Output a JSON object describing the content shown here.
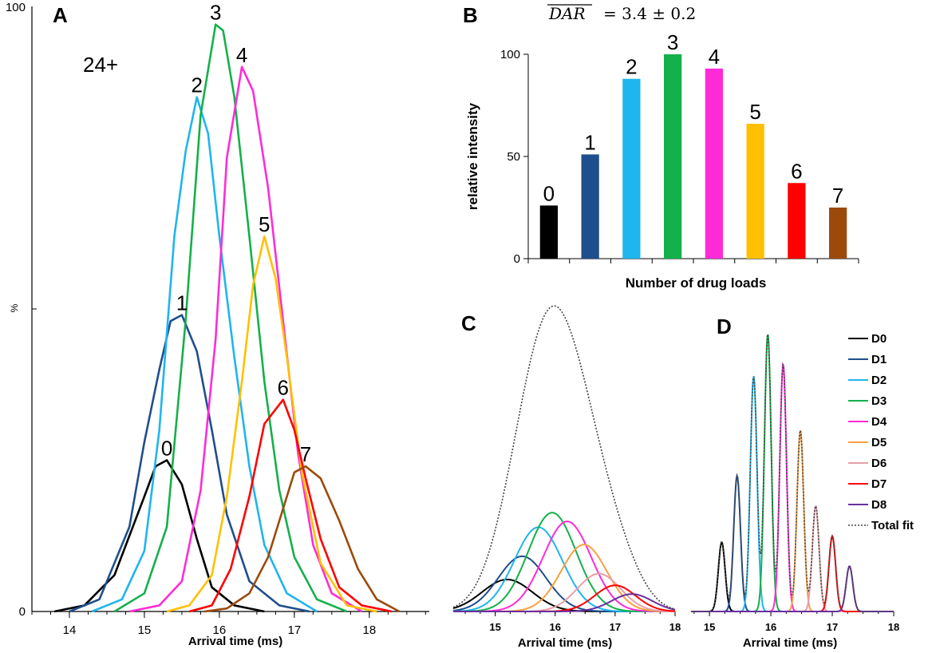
{
  "colors": {
    "D0": "#000000",
    "D1": "#1f4e8c",
    "D2": "#1fb5ee",
    "D3": "#14b04a",
    "D4": "#ff2bd6",
    "D5": "#ffc000",
    "D6": "#ff0000",
    "D7": "#9c4a0c",
    "C_D5": "#f7a040",
    "C_D6": "#e6a0a8",
    "C_D8": "#6a2fa0"
  },
  "chart_data": [
    {
      "panel": "A",
      "type": "line",
      "annotation": "24+",
      "xlabel": "Arrival time (ms)",
      "ylabel": "%",
      "xlim": [
        13.5,
        18.8
      ],
      "ylim": [
        0,
        100
      ],
      "xticks": [
        "14",
        "15",
        "16",
        "17",
        "18"
      ],
      "yticks": [
        "0",
        "100"
      ],
      "series": [
        {
          "name": "0",
          "color": "#000000",
          "points": [
            [
              13.8,
              0
            ],
            [
              14.2,
              1
            ],
            [
              14.6,
              6
            ],
            [
              15.0,
              19
            ],
            [
              15.15,
              24
            ],
            [
              15.3,
              25
            ],
            [
              15.5,
              21
            ],
            [
              15.7,
              12
            ],
            [
              15.9,
              4
            ],
            [
              16.2,
              1
            ],
            [
              16.6,
              0
            ]
          ]
        },
        {
          "name": "1",
          "color": "#1f4e8c",
          "points": [
            [
              14.0,
              0
            ],
            [
              14.4,
              2
            ],
            [
              14.8,
              14
            ],
            [
              15.0,
              28
            ],
            [
              15.2,
              40
            ],
            [
              15.35,
              48
            ],
            [
              15.5,
              49
            ],
            [
              15.7,
              43
            ],
            [
              15.9,
              30
            ],
            [
              16.1,
              16
            ],
            [
              16.4,
              5
            ],
            [
              16.8,
              1
            ],
            [
              17.2,
              0
            ]
          ]
        },
        {
          "name": "2",
          "color": "#1fb5ee",
          "points": [
            [
              14.3,
              0
            ],
            [
              14.7,
              2
            ],
            [
              15.0,
              10
            ],
            [
              15.2,
              30
            ],
            [
              15.4,
              62
            ],
            [
              15.55,
              76
            ],
            [
              15.7,
              85
            ],
            [
              15.85,
              79
            ],
            [
              16.0,
              62
            ],
            [
              16.2,
              42
            ],
            [
              16.4,
              24
            ],
            [
              16.6,
              11
            ],
            [
              16.9,
              3
            ],
            [
              17.3,
              0
            ]
          ]
        },
        {
          "name": "3",
          "color": "#14b04a",
          "points": [
            [
              14.6,
              0
            ],
            [
              15.0,
              3
            ],
            [
              15.3,
              14
            ],
            [
              15.55,
              48
            ],
            [
              15.75,
              82
            ],
            [
              15.95,
              97
            ],
            [
              16.05,
              96
            ],
            [
              16.2,
              85
            ],
            [
              16.4,
              62
            ],
            [
              16.6,
              38
            ],
            [
              16.8,
              20
            ],
            [
              17.0,
              9
            ],
            [
              17.3,
              2
            ],
            [
              17.7,
              0
            ]
          ]
        },
        {
          "name": "4",
          "color": "#ff2bd6",
          "points": [
            [
              14.8,
              0
            ],
            [
              15.2,
              1
            ],
            [
              15.5,
              5
            ],
            [
              15.75,
              20
            ],
            [
              15.95,
              45
            ],
            [
              16.1,
              75
            ],
            [
              16.3,
              90
            ],
            [
              16.45,
              86
            ],
            [
              16.65,
              70
            ],
            [
              16.85,
              48
            ],
            [
              17.05,
              26
            ],
            [
              17.25,
              11
            ],
            [
              17.5,
              3
            ],
            [
              17.9,
              0
            ]
          ]
        },
        {
          "name": "5",
          "color": "#ffc000",
          "points": [
            [
              15.3,
              0
            ],
            [
              15.6,
              1
            ],
            [
              15.9,
              6
            ],
            [
              16.1,
              19
            ],
            [
              16.3,
              38
            ],
            [
              16.45,
              54
            ],
            [
              16.6,
              62
            ],
            [
              16.75,
              55
            ],
            [
              16.9,
              42
            ],
            [
              17.1,
              23
            ],
            [
              17.35,
              8
            ],
            [
              17.7,
              1
            ],
            [
              18.1,
              0
            ]
          ]
        },
        {
          "name": "6",
          "color": "#ff0000",
          "points": [
            [
              15.6,
              0
            ],
            [
              15.9,
              1
            ],
            [
              16.15,
              7
            ],
            [
              16.4,
              19
            ],
            [
              16.6,
              31
            ],
            [
              16.85,
              35
            ],
            [
              17.0,
              30
            ],
            [
              17.15,
              22
            ],
            [
              17.35,
              12
            ],
            [
              17.6,
              4
            ],
            [
              17.9,
              1
            ],
            [
              18.3,
              0
            ]
          ]
        },
        {
          "name": "7",
          "color": "#9c4a0c",
          "points": [
            [
              15.8,
              0
            ],
            [
              16.1,
              0.5
            ],
            [
              16.4,
              3
            ],
            [
              16.65,
              9
            ],
            [
              16.85,
              17
            ],
            [
              17.0,
              23
            ],
            [
              17.15,
              24
            ],
            [
              17.35,
              22
            ],
            [
              17.6,
              15
            ],
            [
              17.85,
              7
            ],
            [
              18.1,
              2
            ],
            [
              18.4,
              0
            ]
          ]
        }
      ]
    },
    {
      "panel": "B",
      "type": "bar",
      "title_parts": {
        "lhs": "DAR",
        "rhs": "= 3.4 ± 0.2"
      },
      "xlabel": "Number of drug loads",
      "ylabel": "relative intensity",
      "ylim": [
        0,
        100
      ],
      "yticks": [
        "0",
        "50",
        "100"
      ],
      "categories": [
        "0",
        "1",
        "2",
        "3",
        "4",
        "5",
        "6",
        "7"
      ],
      "values": [
        26,
        51,
        88,
        100,
        93,
        66,
        37,
        25
      ],
      "bar_colors": [
        "#000000",
        "#1f4e8c",
        "#1fb5ee",
        "#14b04a",
        "#ff2bd6",
        "#ffc000",
        "#ff0000",
        "#9c4a0c"
      ]
    },
    {
      "panel": "C",
      "type": "line",
      "xlabel": "Arrival time (ms)",
      "xlim": [
        14.3,
        18.0
      ],
      "ylim": [
        0,
        100
      ],
      "xticks": [
        "15",
        "16",
        "17",
        "18"
      ],
      "gaussians": [
        {
          "name": "D0",
          "center": 15.2,
          "height": 11,
          "sigma": 0.42,
          "color": "#000000"
        },
        {
          "name": "D1",
          "center": 15.45,
          "height": 19,
          "sigma": 0.4,
          "color": "#1f4e8c"
        },
        {
          "name": "D2",
          "center": 15.72,
          "height": 29,
          "sigma": 0.4,
          "color": "#1fb5ee"
        },
        {
          "name": "D3",
          "center": 15.95,
          "height": 34,
          "sigma": 0.4,
          "color": "#14b04a"
        },
        {
          "name": "D4",
          "center": 16.2,
          "height": 31,
          "sigma": 0.4,
          "color": "#ff2bd6"
        },
        {
          "name": "D5",
          "center": 16.48,
          "height": 23,
          "sigma": 0.38,
          "color": "#f7a040"
        },
        {
          "name": "D6",
          "center": 16.73,
          "height": 13,
          "sigma": 0.36,
          "color": "#e6a0a8"
        },
        {
          "name": "D7",
          "center": 17.0,
          "height": 9,
          "sigma": 0.34,
          "color": "#ff0000"
        },
        {
          "name": "D8",
          "center": 17.28,
          "height": 6,
          "sigma": 0.34,
          "color": "#6a2fa0"
        }
      ],
      "total_fit": {
        "name": "Total fit",
        "color": "#444444"
      }
    },
    {
      "panel": "D",
      "type": "line",
      "xlabel": "Arrival time (ms)",
      "xlim": [
        14.7,
        18.0
      ],
      "ylim": [
        0,
        100
      ],
      "xticks": [
        "15",
        "16",
        "17",
        "18"
      ],
      "legend": [
        "D0",
        "D1",
        "D2",
        "D3",
        "D4",
        "D5",
        "D6",
        "D7",
        "D8",
        "Total fit"
      ],
      "legend_position": "top-right",
      "gaussians": [
        {
          "name": "D0",
          "center": 15.2,
          "height": 23,
          "sigma": 0.055,
          "color": "#000000"
        },
        {
          "name": "D1",
          "center": 15.45,
          "height": 45,
          "sigma": 0.055,
          "color": "#1f4e8c"
        },
        {
          "name": "D2",
          "center": 15.72,
          "height": 78,
          "sigma": 0.055,
          "color": "#1fb5ee"
        },
        {
          "name": "D3",
          "center": 15.95,
          "height": 92,
          "sigma": 0.055,
          "color": "#14b04a"
        },
        {
          "name": "D4",
          "center": 16.2,
          "height": 82,
          "sigma": 0.055,
          "color": "#ff2bd6"
        },
        {
          "name": "D5",
          "center": 16.48,
          "height": 60,
          "sigma": 0.055,
          "color": "#f7a040"
        },
        {
          "name": "D6",
          "center": 16.73,
          "height": 35,
          "sigma": 0.055,
          "color": "#e6a0a8"
        },
        {
          "name": "D7",
          "center": 17.0,
          "height": 25,
          "sigma": 0.055,
          "color": "#ff0000"
        },
        {
          "name": "D8",
          "center": 17.28,
          "height": 15,
          "sigma": 0.055,
          "color": "#6a2fa0"
        }
      ],
      "total_fit": {
        "name": "Total fit",
        "color": "#444444"
      }
    }
  ]
}
